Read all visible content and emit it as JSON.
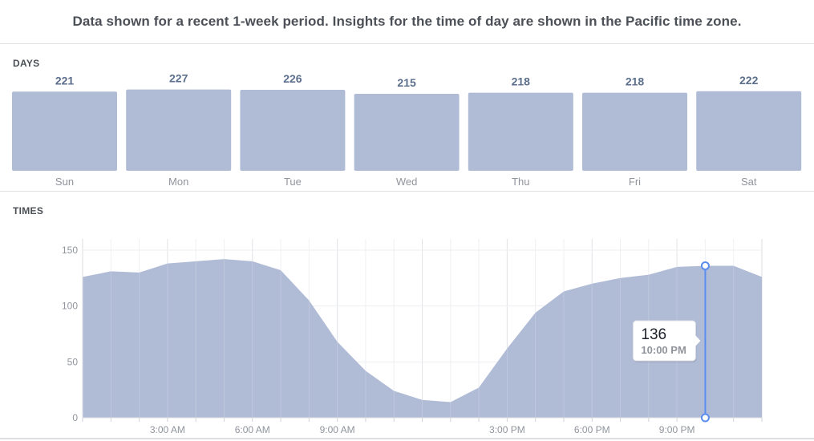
{
  "header": {
    "text": "Data shown for a recent 1-week period. Insights for the time of day are shown in the Pacific time zone."
  },
  "days_section": {
    "label": "DAYS"
  },
  "times_section": {
    "label": "TIMES"
  },
  "colors": {
    "fill": "#b0bbd6",
    "line": "#5b8def",
    "value_label": "#5c6f8c",
    "axis_label": "#90949c"
  },
  "chart_data": [
    {
      "type": "bar",
      "categories": [
        "Sun",
        "Mon",
        "Tue",
        "Wed",
        "Thu",
        "Fri",
        "Sat"
      ],
      "values": [
        221,
        227,
        226,
        215,
        218,
        218,
        222
      ],
      "data_labels": [
        "221",
        "227",
        "226",
        "215",
        "218",
        "218",
        "222"
      ]
    },
    {
      "type": "area",
      "x": [
        0,
        1,
        2,
        3,
        4,
        5,
        6,
        7,
        8,
        9,
        10,
        11,
        12,
        13,
        14,
        15,
        16,
        17,
        18,
        19,
        20,
        21,
        22,
        23,
        24
      ],
      "values": [
        126,
        131,
        130,
        138,
        140,
        142,
        140,
        132,
        105,
        68,
        42,
        24,
        16,
        14,
        27,
        62,
        94,
        113,
        120,
        125,
        128,
        135,
        136,
        136,
        126
      ],
      "ylim": [
        0,
        160
      ],
      "y_ticks": [
        0,
        50,
        100,
        150
      ],
      "y_tick_labels": [
        "0",
        "50",
        "100",
        "150"
      ],
      "x_tick_labels": [
        {
          "hour": 3,
          "label": "3:00 AM"
        },
        {
          "hour": 6,
          "label": "6:00 AM"
        },
        {
          "hour": 9,
          "label": "9:00 AM"
        },
        {
          "hour": 15,
          "label": "3:00 PM"
        },
        {
          "hour": 18,
          "label": "6:00 PM"
        },
        {
          "hour": 21,
          "label": "9:00 PM"
        }
      ],
      "grid": true,
      "highlight": {
        "hour": 22,
        "value": "136",
        "time": "10:00 PM"
      }
    }
  ]
}
